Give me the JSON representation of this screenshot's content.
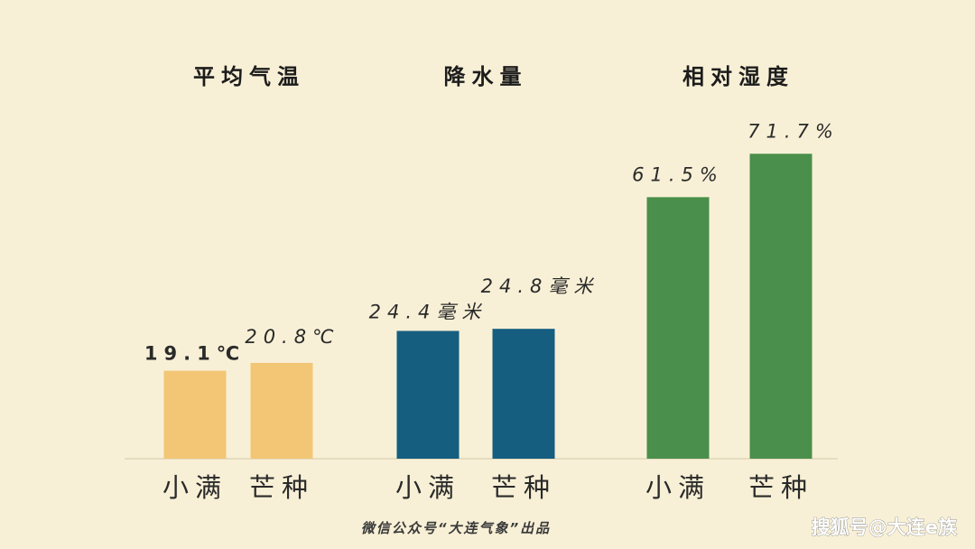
{
  "chart_data": [
    {
      "type": "bar",
      "title": "平均气温",
      "categories": [
        "小满",
        "芒种"
      ],
      "values": [
        19.1,
        20.8
      ],
      "value_labels": [
        "19.1℃",
        "20.8℃"
      ],
      "color": "#f2c675"
    },
    {
      "type": "bar",
      "title": "降水量",
      "categories": [
        "小满",
        "芒种"
      ],
      "values": [
        24.4,
        24.8
      ],
      "value_labels": [
        "24.4毫米",
        "24.8毫米"
      ],
      "color": "#155e80"
    },
    {
      "type": "bar",
      "title": "相对湿度",
      "categories": [
        "小满",
        "芒种"
      ],
      "values": [
        61.5,
        71.7
      ],
      "value_labels": [
        "61.5%",
        "71.7%"
      ],
      "color": "#4a8f4b"
    }
  ],
  "footer": "微信公众号“大连气象”出品",
  "watermark": "搜狐号@大连e族"
}
